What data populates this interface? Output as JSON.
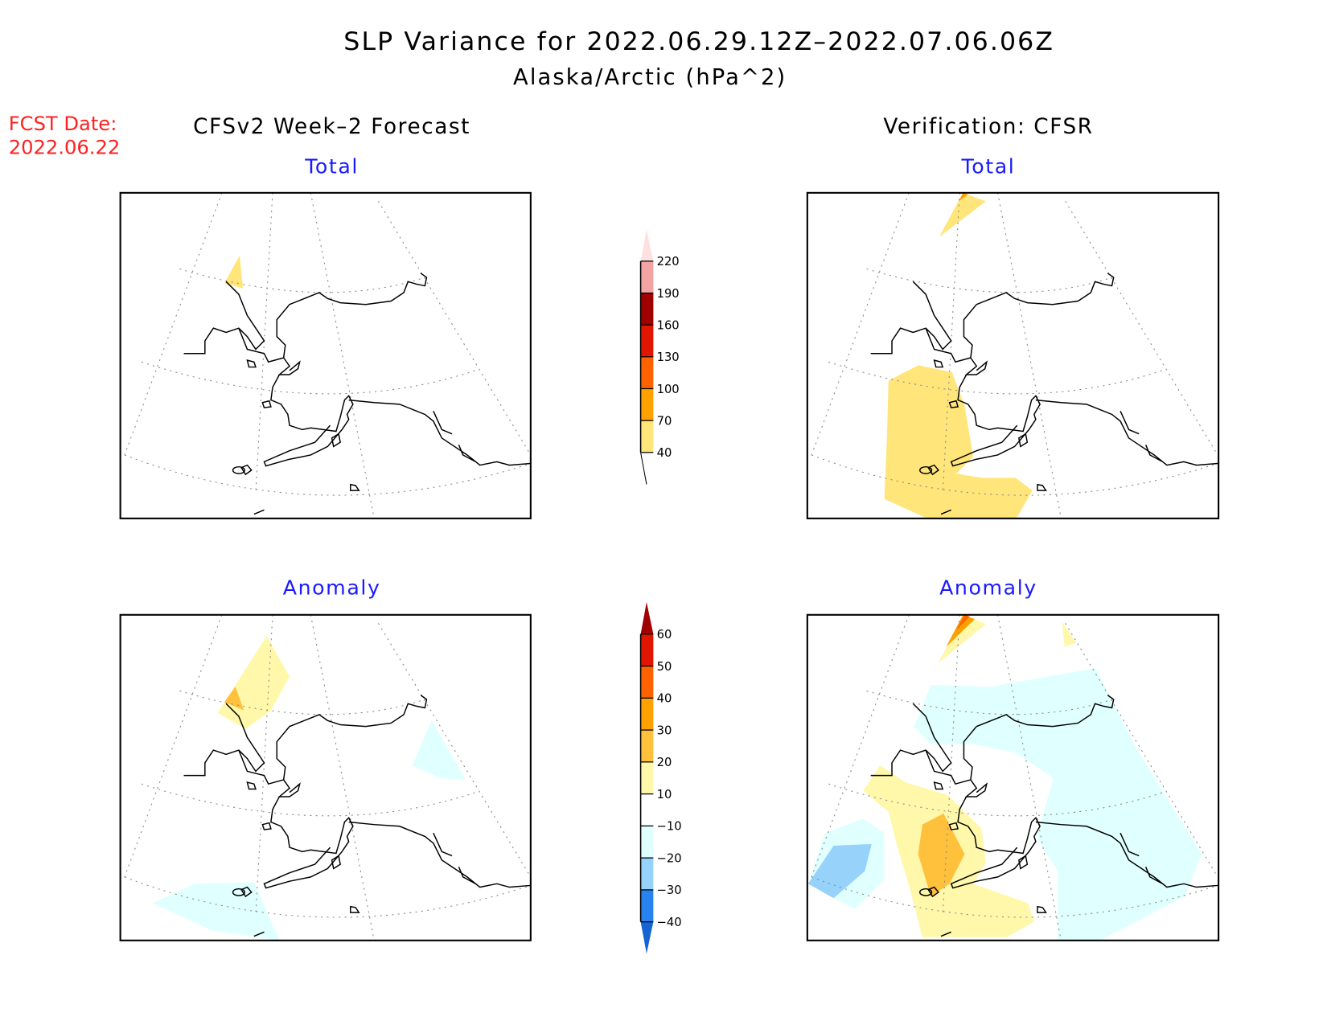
{
  "title": "SLP Variance for 2022.06.29.12Z–2022.07.06.06Z",
  "subtitle": "Alaska/Arctic (hPa^2)",
  "fcst_label": "FCST Date:",
  "fcst_date": "2022.06.22",
  "left_header": "CFSv2 Week–2 Forecast",
  "right_header": "Verification: CFSR",
  "panels": {
    "fcst_total": "Total",
    "verif_total": "Total",
    "fcst_anom": "Anomaly",
    "verif_anom": "Anomaly"
  },
  "chart_data": [
    {
      "type": "heatmap",
      "name": "total-colorbar",
      "levels": [
        40,
        70,
        100,
        130,
        160,
        190,
        220
      ],
      "labels": [
        "40",
        "70",
        "100",
        "130",
        "160",
        "190",
        "220"
      ],
      "colors": [
        "#ffe57a",
        "#ffa100",
        "#ff6200",
        "#e01600",
        "#a10000",
        "#f4a3a3",
        "#ffe0e0"
      ]
    },
    {
      "type": "heatmap",
      "name": "anomaly-colorbar",
      "levels": [
        -40,
        -30,
        -20,
        -10,
        10,
        20,
        30,
        40,
        50,
        60
      ],
      "labels": [
        "−40",
        "−30",
        "−20",
        "−10",
        "10",
        "20",
        "30",
        "40",
        "50",
        "60"
      ],
      "colors": [
        "#1464d2",
        "#2882f0",
        "#96d2fa",
        "#e0ffff",
        "#ffffff",
        "#fff8aa",
        "#ffc03c",
        "#ffa100",
        "#ff6200",
        "#e01600",
        "#a10000"
      ]
    }
  ]
}
